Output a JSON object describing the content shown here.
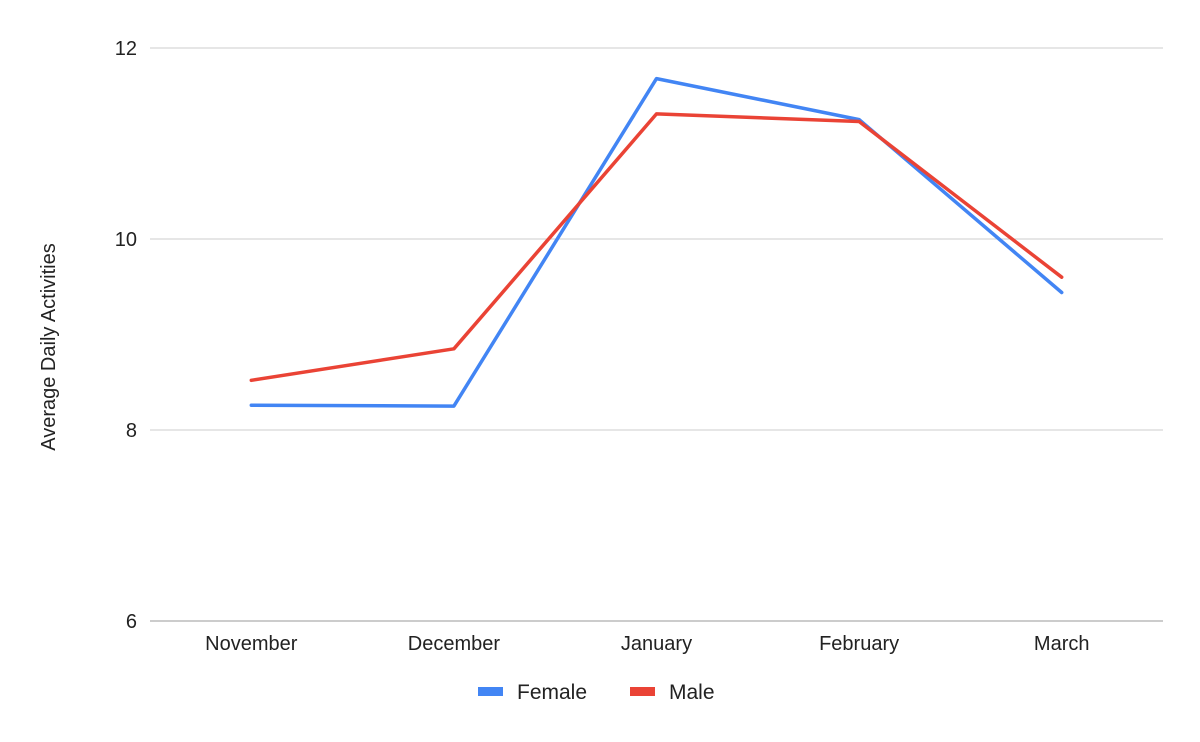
{
  "chart_data": {
    "type": "line",
    "categories": [
      "November",
      "December",
      "January",
      "February",
      "March"
    ],
    "series": [
      {
        "name": "Female",
        "color": "#4285f4",
        "values": [
          8.26,
          8.25,
          11.68,
          11.25,
          9.44
        ]
      },
      {
        "name": "Male",
        "color": "#ea4335",
        "values": [
          8.52,
          8.85,
          11.31,
          11.23,
          9.6
        ]
      }
    ],
    "ylabel": "Average Daily Activities",
    "ylim": [
      6,
      12
    ],
    "yticks": [
      6,
      8,
      10,
      12
    ],
    "grid": true,
    "legend_position": "bottom"
  }
}
